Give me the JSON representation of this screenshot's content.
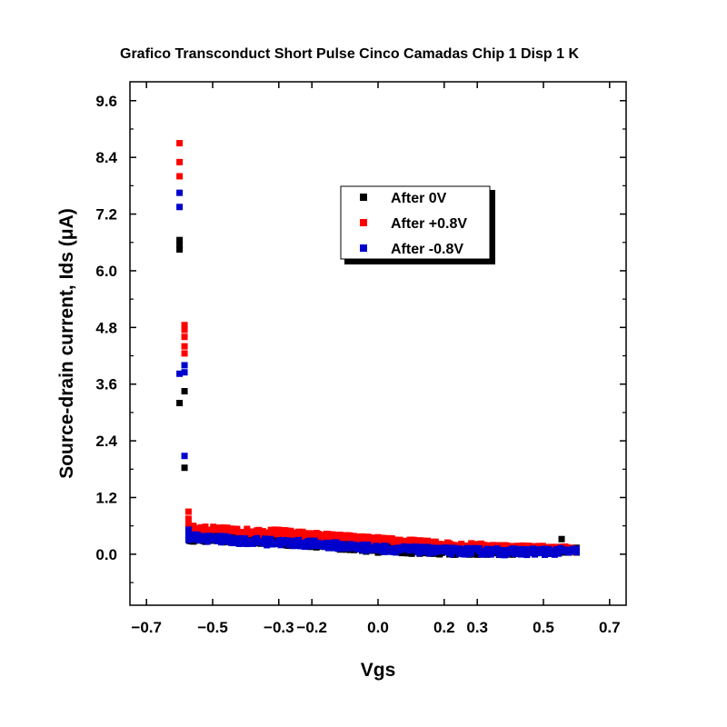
{
  "chart_data": {
    "type": "scatter",
    "title": "Grafico Transconduct Short Pulse Cinco Camadas Chip 1 Disp 1 K",
    "xlabel": "Vgs",
    "ylabel": "Source-drain current, Ids (μA)",
    "xlim": [
      -0.75,
      0.75
    ],
    "ylim": [
      -1.08,
      10.0
    ],
    "x_ticks": [
      -0.7,
      -0.5,
      -0.3,
      -0.2,
      0.0,
      0.2,
      0.3,
      0.5,
      0.7
    ],
    "x_tick_labels": [
      "−0.7",
      "−0.5",
      "−0.3",
      "−0.2",
      "0.0",
      "0.2",
      "0.3",
      "0.5",
      "0.7"
    ],
    "y_ticks": [
      0.0,
      1.2,
      2.4,
      3.6,
      4.8,
      6.0,
      7.2,
      8.4,
      9.6
    ],
    "y_tick_labels": [
      "0.0",
      "1.2",
      "2.4",
      "3.6",
      "4.8",
      "6.0",
      "7.2",
      "8.4",
      "9.6"
    ],
    "grid": false,
    "legend_position": "upper-middle",
    "series": [
      {
        "name": "After 0V",
        "color": "#000000",
        "points": [
          [
            -0.6,
            3.2
          ],
          [
            -0.6,
            6.45
          ],
          [
            -0.6,
            6.55
          ],
          [
            -0.6,
            6.65
          ],
          [
            -0.585,
            1.83
          ],
          [
            -0.585,
            3.45
          ],
          [
            0.555,
            0.32
          ]
        ],
        "trend": [
          [
            -0.57,
            0.34
          ],
          [
            -0.4,
            0.3
          ],
          [
            -0.2,
            0.22
          ],
          [
            0.0,
            0.1
          ],
          [
            0.2,
            0.06
          ],
          [
            0.4,
            0.05
          ],
          [
            0.6,
            0.1
          ]
        ],
        "spread": 0.07
      },
      {
        "name": "After +0.8V",
        "color": "#ff0000",
        "points": [
          [
            -0.6,
            8.7
          ],
          [
            -0.6,
            8.3
          ],
          [
            -0.6,
            8.0
          ],
          [
            -0.585,
            4.85
          ],
          [
            -0.585,
            4.75
          ],
          [
            -0.585,
            4.6
          ],
          [
            -0.585,
            4.4
          ],
          [
            -0.585,
            4.25
          ],
          [
            -0.573,
            0.9
          ],
          [
            -0.573,
            0.75
          ],
          [
            -0.573,
            0.62
          ]
        ],
        "trend": [
          [
            -0.57,
            0.55
          ],
          [
            -0.4,
            0.48
          ],
          [
            -0.3,
            0.46
          ],
          [
            -0.2,
            0.4
          ],
          [
            0.0,
            0.3
          ],
          [
            0.2,
            0.2
          ],
          [
            0.4,
            0.14
          ],
          [
            0.6,
            0.1
          ]
        ],
        "spread": 0.06
      },
      {
        "name": "After -0.8V",
        "color": "#0000cc",
        "points": [
          [
            -0.6,
            7.65
          ],
          [
            -0.6,
            7.35
          ],
          [
            -0.6,
            3.82
          ],
          [
            -0.585,
            3.85
          ],
          [
            -0.585,
            4.0
          ],
          [
            -0.585,
            2.08
          ],
          [
            -0.573,
            0.52
          ],
          [
            -0.573,
            0.4
          ],
          [
            -0.573,
            0.3
          ]
        ],
        "trend": [
          [
            -0.57,
            0.36
          ],
          [
            -0.4,
            0.28
          ],
          [
            -0.2,
            0.22
          ],
          [
            0.0,
            0.12
          ],
          [
            0.2,
            0.07
          ],
          [
            0.4,
            0.05
          ],
          [
            0.6,
            0.06
          ]
        ],
        "spread": 0.07
      }
    ]
  }
}
